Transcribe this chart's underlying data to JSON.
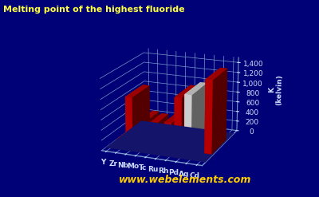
{
  "title": "Melting point of the highest fluoride",
  "ylabel": "K\n(kelvin)",
  "website": "www.webelements.com",
  "categories": [
    "Y",
    "Zr",
    "Nb",
    "Mo",
    "Tc",
    "Ru",
    "Rh",
    "Pd",
    "Ag",
    "Cd"
  ],
  "values": [
    30,
    912,
    400,
    370,
    100,
    503,
    1020,
    1100,
    250,
    1430
  ],
  "bar_colors": [
    "#cc0000",
    "#cc0000",
    "#cc0000",
    "#cc0000",
    "#cc0000",
    "#cc0000",
    "#cc0000",
    "#e8e8e8",
    "#cc0000",
    "#cc0000"
  ],
  "bar_colors_dark": [
    "#880000",
    "#880000",
    "#880000",
    "#880000",
    "#880000",
    "#880000",
    "#880000",
    "#aaaaaa",
    "#880000",
    "#880000"
  ],
  "bar_colors_top": [
    "#ff4444",
    "#ff4444",
    "#ff4444",
    "#ff4444",
    "#ff4444",
    "#ff4444",
    "#ff4444",
    "#ffffff",
    "#ff4444",
    "#ff4444"
  ],
  "background_color": "#000077",
  "floor_color": "#1a1a8c",
  "grid_color": "#7799cc",
  "title_color": "#ffff44",
  "label_color": "#ccddff",
  "tick_color": "#ccddff",
  "website_color": "#ffcc00",
  "ylim": [
    0,
    1500
  ],
  "yticks": [
    0,
    200,
    400,
    600,
    800,
    1000,
    1200,
    1400
  ],
  "ytick_labels": [
    "0",
    "200",
    "400",
    "600",
    "800",
    "1,000",
    "1,200",
    "1,400"
  ],
  "elev": 18,
  "azim": -68
}
